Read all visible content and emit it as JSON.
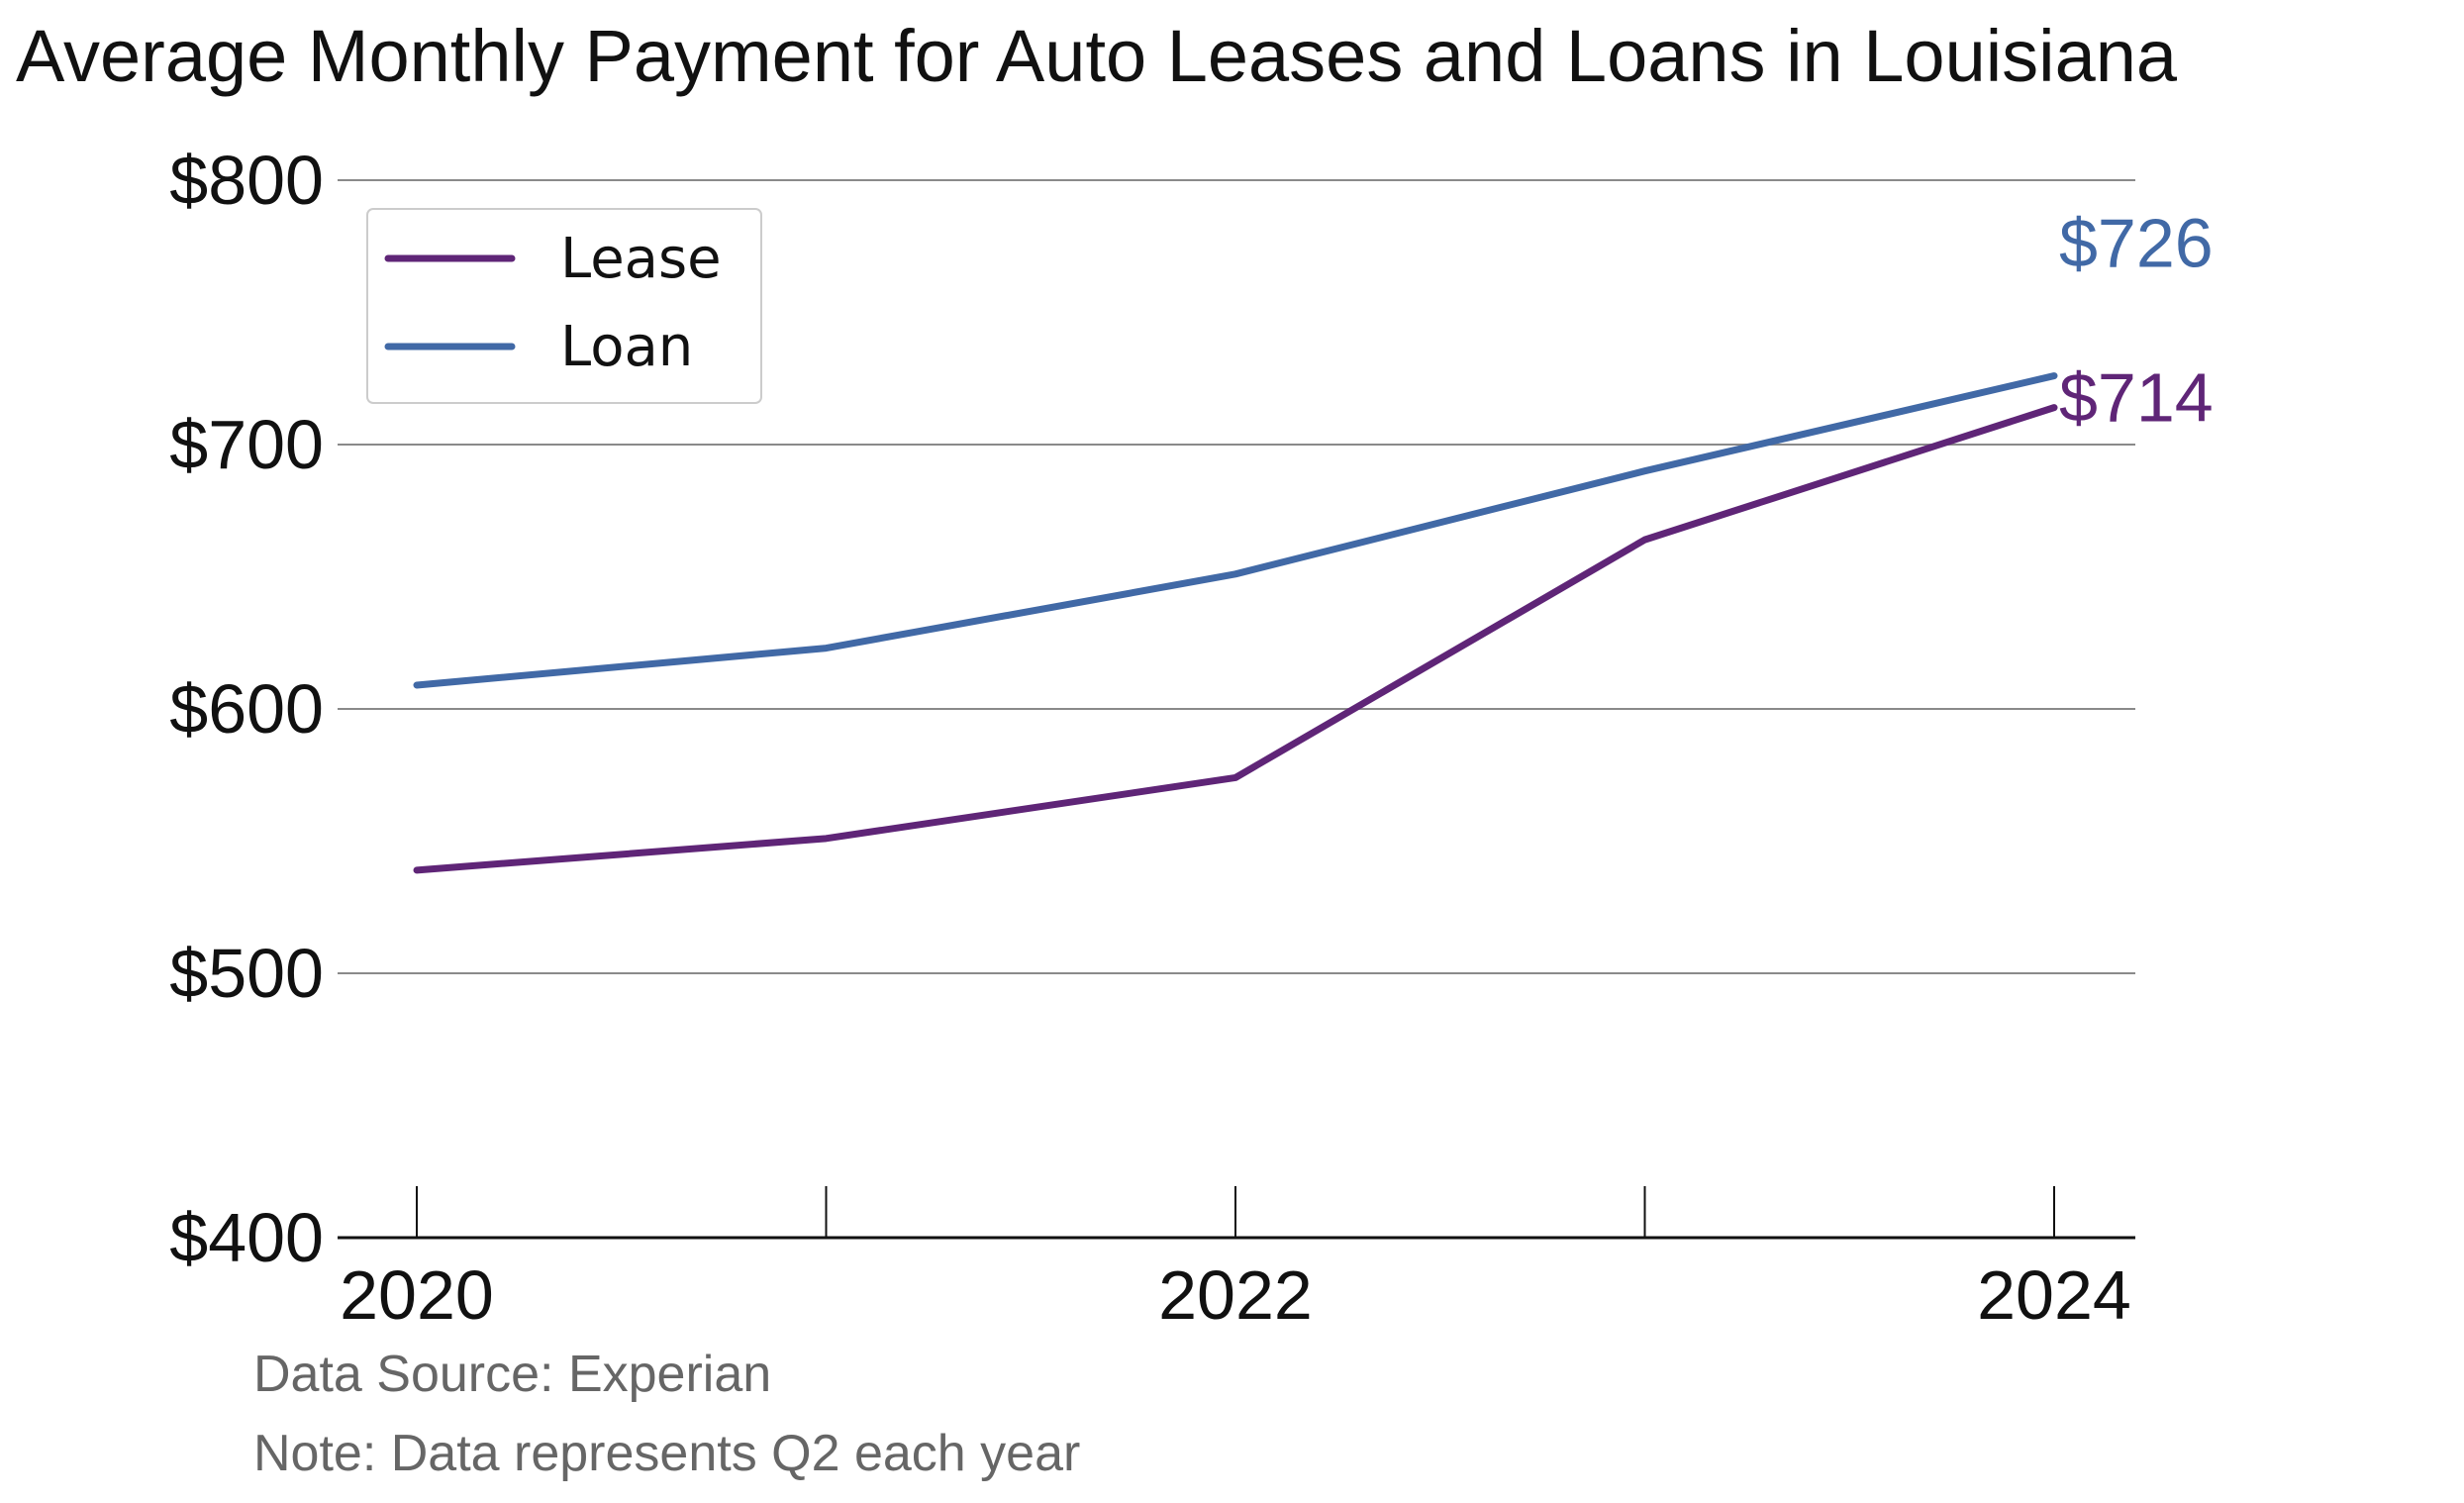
{
  "chart_data": {
    "type": "line",
    "title": "Average Monthly Payment for Auto Leases and Loans in Louisiana",
    "xlabel": "",
    "ylabel": "",
    "x": [
      2020,
      2021,
      2022,
      2023,
      2024
    ],
    "x_tick_values": [
      2020,
      2021,
      2022,
      2023,
      2024
    ],
    "x_tick_labels": [
      "2020",
      "",
      "2022",
      "",
      "2024"
    ],
    "ylim": [
      400,
      800
    ],
    "y_ticks": [
      400,
      500,
      600,
      700,
      800
    ],
    "y_tick_labels": [
      "$400",
      "$500",
      "$600",
      "$700",
      "$800"
    ],
    "grid": "horizontal",
    "legend_position": "top-left",
    "series": [
      {
        "name": "Lease",
        "color": "#5f2577",
        "values": [
          539,
          551,
          574,
          664,
          714
        ],
        "end_label": "$714"
      },
      {
        "name": "Loan",
        "color": "#4169a6",
        "values": [
          609,
          623,
          651,
          690,
          726
        ],
        "end_label": "$726"
      }
    ],
    "notes": [
      "Data Source: Experian",
      "Note: Data represents Q2 each year"
    ]
  }
}
